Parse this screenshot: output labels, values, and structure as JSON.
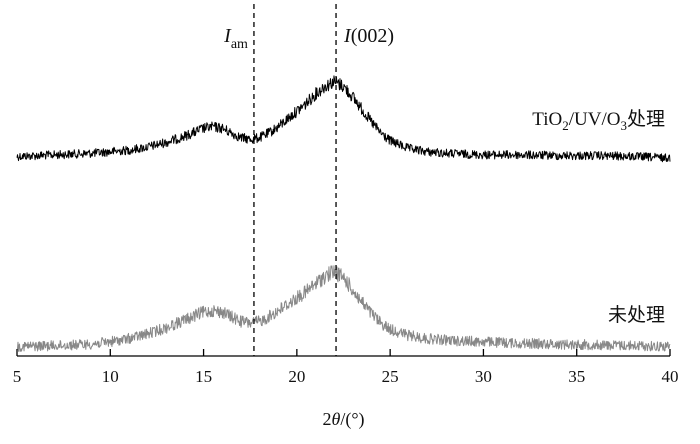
{
  "chart_data": {
    "type": "line",
    "xlabel": "2θ/(°)",
    "xlim": [
      5,
      40
    ],
    "x_ticks": [
      5,
      10,
      15,
      20,
      25,
      30,
      35,
      40
    ],
    "y_axis_visible": false,
    "grid": false,
    "reference_lines": [
      {
        "name": "Iam",
        "x": 17.7,
        "style": "dashed"
      },
      {
        "name": "I(002)",
        "x": 22.1,
        "style": "dashed"
      }
    ],
    "series": [
      {
        "name": "TiO2/UV/O3处理",
        "color": "#000000",
        "x": [
          5,
          7,
          9,
          10,
          11,
          12,
          13,
          14,
          15,
          15.5,
          16,
          16.5,
          17,
          17.5,
          18,
          18.5,
          19,
          19.5,
          20,
          20.5,
          21,
          21.5,
          22,
          22.5,
          23,
          23.5,
          24,
          24.5,
          25,
          26,
          27,
          28,
          30,
          32,
          34,
          36,
          38,
          40
        ],
        "y": [
          0.02,
          0.04,
          0.06,
          0.08,
          0.1,
          0.14,
          0.2,
          0.28,
          0.38,
          0.4,
          0.38,
          0.32,
          0.26,
          0.24,
          0.26,
          0.32,
          0.4,
          0.5,
          0.6,
          0.7,
          0.82,
          0.92,
          0.98,
          0.92,
          0.78,
          0.62,
          0.46,
          0.32,
          0.22,
          0.12,
          0.08,
          0.06,
          0.04,
          0.04,
          0.03,
          0.03,
          0.02,
          0.0
        ]
      },
      {
        "name": "未处理",
        "color": "#888888",
        "x": [
          5,
          7,
          9,
          10,
          11,
          12,
          13,
          14,
          15,
          15.5,
          16,
          16.5,
          17,
          17.5,
          18,
          18.5,
          19,
          19.5,
          20,
          20.5,
          21,
          21.5,
          22,
          22.5,
          23,
          23.5,
          24,
          24.5,
          25,
          26,
          27,
          28,
          30,
          32,
          34,
          36,
          38,
          40
        ],
        "y": [
          0.02,
          0.03,
          0.05,
          0.08,
          0.12,
          0.18,
          0.26,
          0.36,
          0.46,
          0.48,
          0.46,
          0.4,
          0.34,
          0.32,
          0.34,
          0.4,
          0.48,
          0.56,
          0.64,
          0.72,
          0.82,
          0.92,
          0.98,
          0.9,
          0.74,
          0.58,
          0.44,
          0.32,
          0.24,
          0.16,
          0.12,
          0.1,
          0.08,
          0.06,
          0.05,
          0.04,
          0.03,
          0.02
        ]
      }
    ]
  }
}
